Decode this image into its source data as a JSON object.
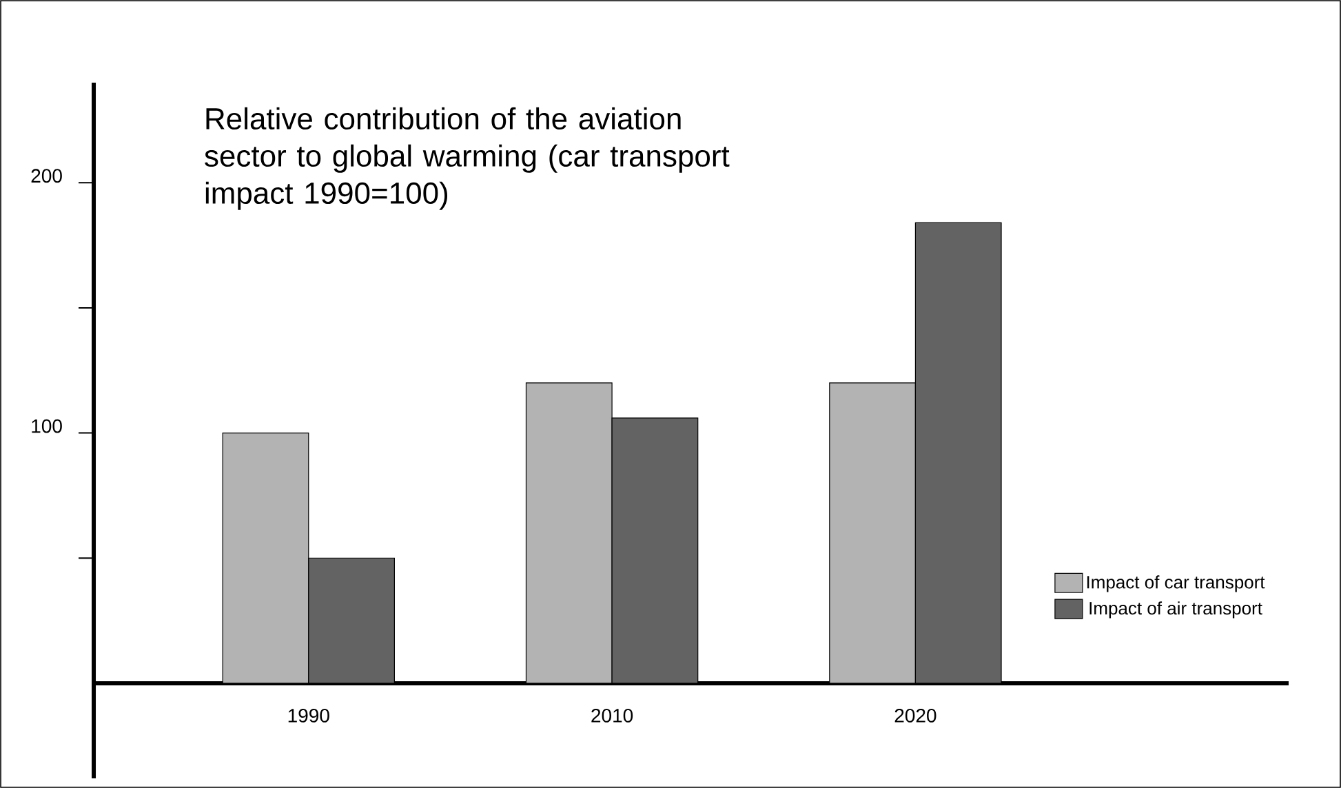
{
  "chart_data": {
    "type": "bar",
    "title": "Relative contribution of the aviation sector to global warming (car transport impact 1990=100)",
    "categories": [
      "1990",
      "2010",
      "2020"
    ],
    "series": [
      {
        "name": "Impact of car transport",
        "color": "#b3b3b3",
        "values": [
          100,
          120,
          120
        ]
      },
      {
        "name": "Impact of air transport",
        "color": "#636363",
        "values": [
          50,
          106,
          184
        ]
      }
    ],
    "ylim": [
      -38,
      240
    ],
    "yticks": [
      {
        "value": 50,
        "label": null
      },
      100,
      {
        "value": 150,
        "label": null
      },
      200
    ],
    "legend": "right"
  }
}
